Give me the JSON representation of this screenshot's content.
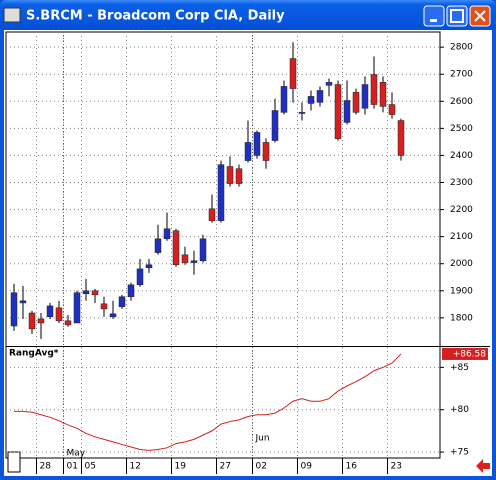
{
  "chart_data": [
    {
      "type": "candlestick",
      "title": "S.BRCM - Broadcom Corp ClA, Daily",
      "categories": [
        null,
        null,
        null,
        "28",
        null,
        null,
        "01",
        null,
        "05",
        null,
        null,
        null,
        null,
        "12",
        null,
        null,
        null,
        null,
        "19",
        null,
        null,
        null,
        null,
        "27",
        null,
        null,
        null,
        "02",
        null,
        null,
        null,
        null,
        "09",
        null,
        null,
        null,
        null,
        "16",
        null,
        null,
        null,
        null,
        "23",
        null
      ],
      "months": [
        {
          "index": 6,
          "label": "May"
        },
        {
          "index": 27,
          "label": "Jun"
        }
      ],
      "open": [
        1770,
        1855,
        1818,
        1796,
        1804,
        1837,
        1789,
        1781,
        1889,
        1900,
        1852,
        1804,
        1841,
        1878,
        1922,
        1985,
        2041,
        2092,
        2122,
        2033,
        2004,
        2011,
        2203,
        2159,
        2359,
        2351,
        2381,
        2400,
        2448,
        2455,
        2559,
        2758,
        2555,
        2592,
        2596,
        2659,
        2662,
        2522,
        2633,
        2574,
        2699,
        2670,
        2588,
        2529
      ],
      "high": [
        1926,
        1918,
        1826,
        1818,
        1855,
        1863,
        1811,
        1900,
        1944,
        1907,
        1878,
        1863,
        1885,
        1930,
        2018,
        2018,
        2144,
        2189,
        2129,
        2063,
        2048,
        2107,
        2255,
        2381,
        2396,
        2366,
        2529,
        2492,
        2463,
        2610,
        2677,
        2818,
        2596,
        2640,
        2655,
        2684,
        2677,
        2677,
        2647,
        2692,
        2766,
        2692,
        2633,
        2536
      ],
      "low": [
        1752,
        1796,
        1741,
        1722,
        1796,
        1781,
        1767,
        1781,
        1863,
        1855,
        1804,
        1796,
        1833,
        1863,
        1915,
        1966,
        2033,
        2085,
        1989,
        1996,
        1959,
        2004,
        2152,
        2152,
        2285,
        2285,
        2374,
        2388,
        2351,
        2448,
        2551,
        2595,
        2529,
        2566,
        2581,
        2618,
        2455,
        2514,
        2551,
        2551,
        2573,
        2559,
        2536,
        2381
      ],
      "close": [
        1893,
        1863,
        1759,
        1781,
        1844,
        1789,
        1774,
        1893,
        1900,
        1885,
        1833,
        1815,
        1878,
        1922,
        1981,
        1996,
        2092,
        2129,
        1996,
        2004,
        2011,
        2092,
        2159,
        2366,
        2296,
        2296,
        2448,
        2485,
        2381,
        2566,
        2655,
        2647,
        2559,
        2618,
        2640,
        2670,
        2462,
        2603,
        2559,
        2662,
        2588,
        2581,
        2551,
        2400
      ],
      "up_color": "#1f2fbf",
      "down_color": "#d42020",
      "ylim": [
        1696,
        2856
      ],
      "yticks": [
        1800,
        1900,
        2000,
        2100,
        2200,
        2300,
        2400,
        2500,
        2600,
        2700,
        2800
      ],
      "grid": true
    },
    {
      "type": "line",
      "title": "RangAvg*",
      "color": "#d42020",
      "values": [
        79.8,
        79.8,
        79.7,
        79.4,
        79.1,
        78.7,
        78.2,
        77.8,
        77.2,
        76.8,
        76.5,
        76.2,
        75.9,
        75.6,
        75.3,
        75.2,
        75.3,
        75.5,
        76.0,
        76.2,
        76.5,
        77.0,
        77.5,
        78.3,
        78.6,
        78.8,
        79.2,
        79.4,
        79.4,
        79.6,
        80.2,
        81.0,
        81.3,
        81.0,
        81.0,
        81.3,
        82.2,
        82.8,
        83.3,
        83.9,
        84.6,
        85.0,
        85.5,
        86.58
      ],
      "value_labels": [
        null,
        null,
        null,
        null,
        null,
        null,
        null,
        null,
        null,
        null,
        null,
        null,
        null,
        null,
        null,
        null,
        null,
        null,
        null,
        null,
        null,
        null,
        null,
        null,
        null,
        null,
        null,
        null,
        null,
        null,
        null,
        null,
        null,
        null,
        null,
        null,
        null,
        null,
        null,
        null,
        null,
        null,
        null,
        "+86.58"
      ],
      "ylim": [
        74.3,
        87.4
      ],
      "yticks": [
        {
          "value": 75,
          "label": "+75"
        },
        {
          "value": 80,
          "label": "+80"
        },
        {
          "value": 85,
          "label": "+85"
        }
      ],
      "grid": true
    }
  ]
}
